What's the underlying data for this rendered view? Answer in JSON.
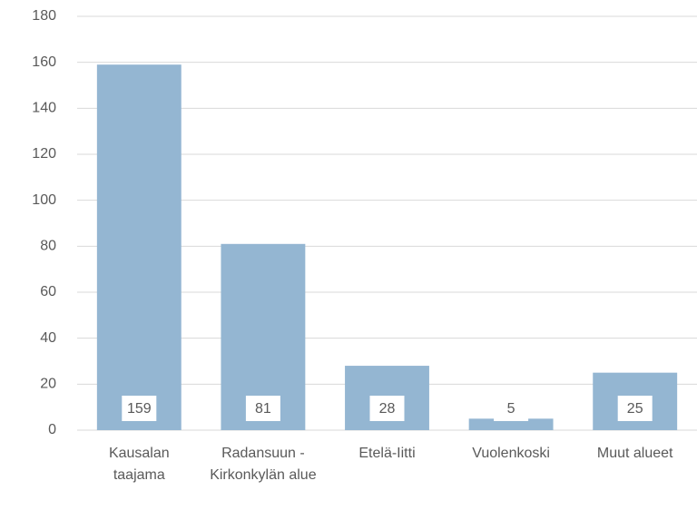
{
  "chart_data": {
    "type": "bar",
    "categories": [
      "Kausalan taajama",
      "Radansuun - Kirkonkylän alue",
      "Etelä-Iitti",
      "Vuolenkoski",
      "Muut alueet"
    ],
    "values": [
      159,
      81,
      28,
      5,
      25
    ],
    "color": "#94b6d2",
    "ylim": [
      0,
      180
    ],
    "yticks": [
      0,
      20,
      40,
      60,
      80,
      100,
      120,
      140,
      160,
      180
    ],
    "grid": true
  }
}
